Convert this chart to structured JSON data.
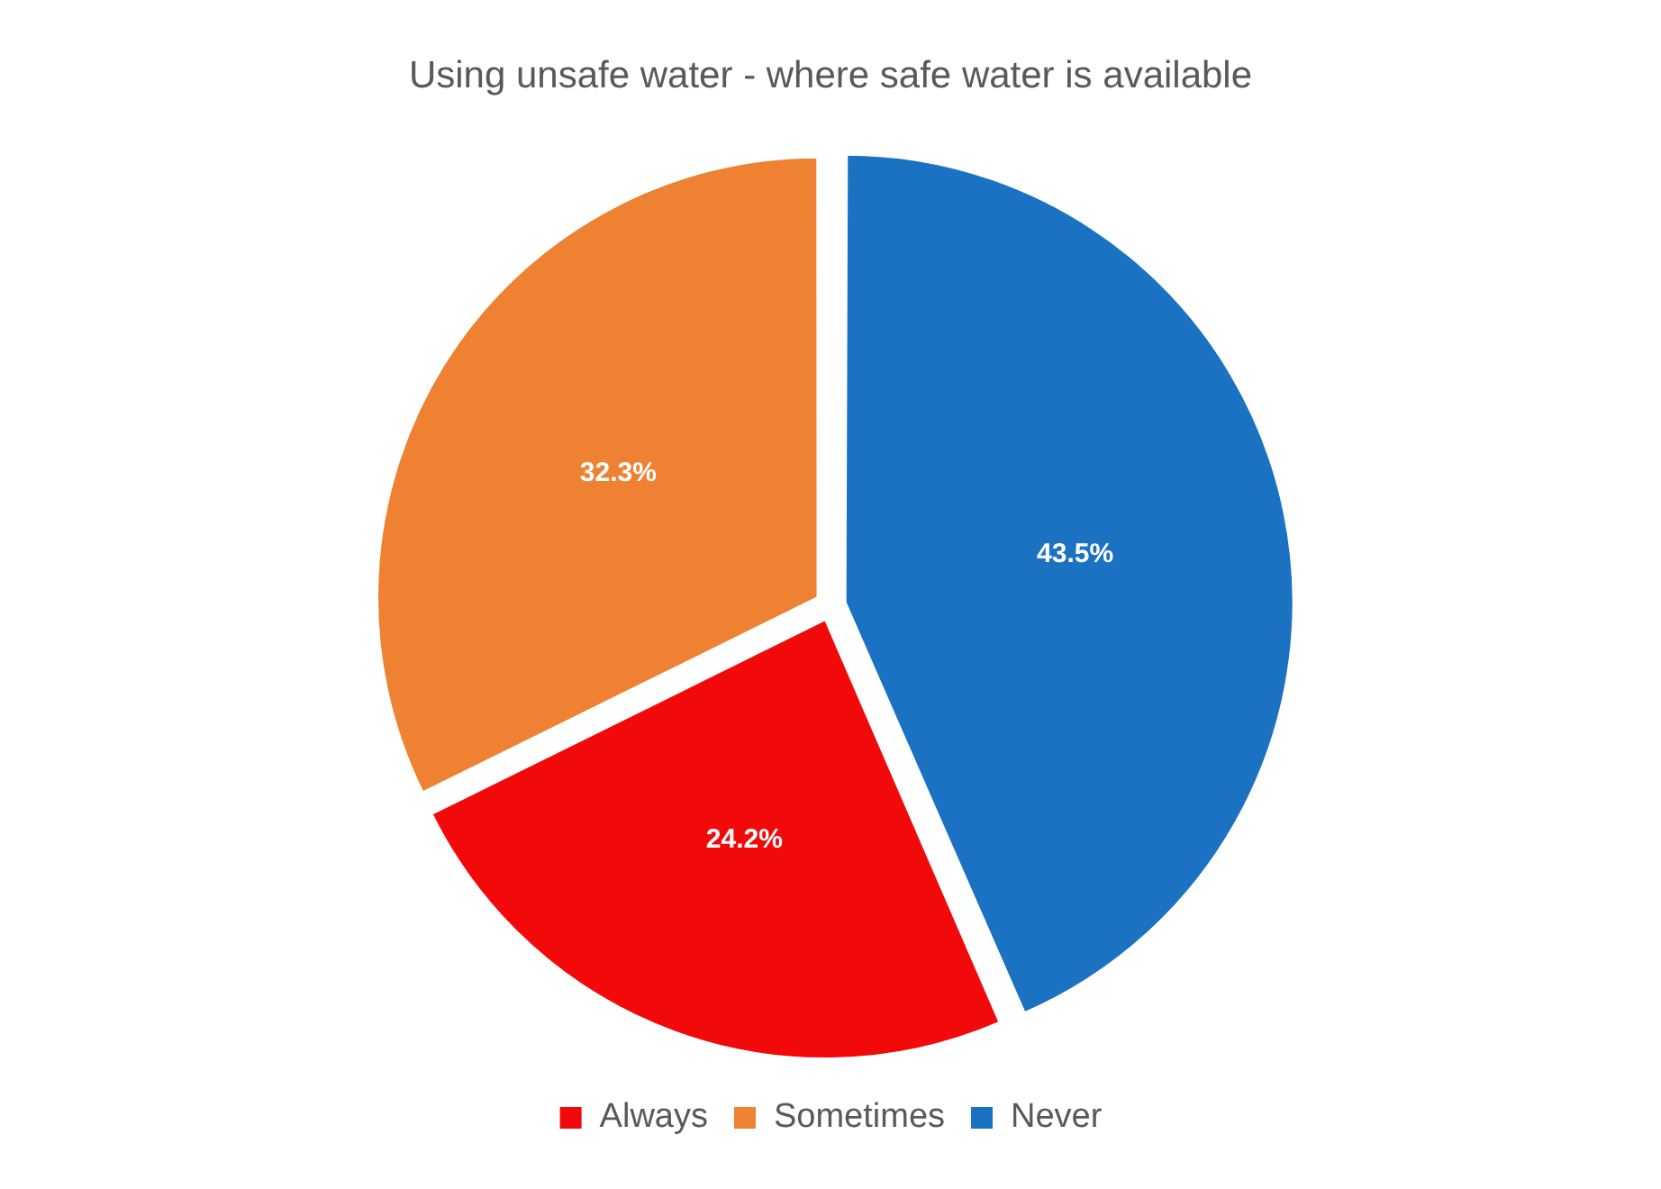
{
  "chart_data": {
    "type": "pie",
    "title": "Using unsafe water - where safe water is available",
    "categories": [
      "Always",
      "Sometimes",
      "Never"
    ],
    "values": [
      24.2,
      32.3,
      43.5
    ],
    "colors": [
      "#f20a0a",
      "#ee8232",
      "#1b72c2"
    ],
    "value_labels": [
      "24.2%",
      "32.3%",
      "43.5%"
    ],
    "legend": "bottom"
  }
}
